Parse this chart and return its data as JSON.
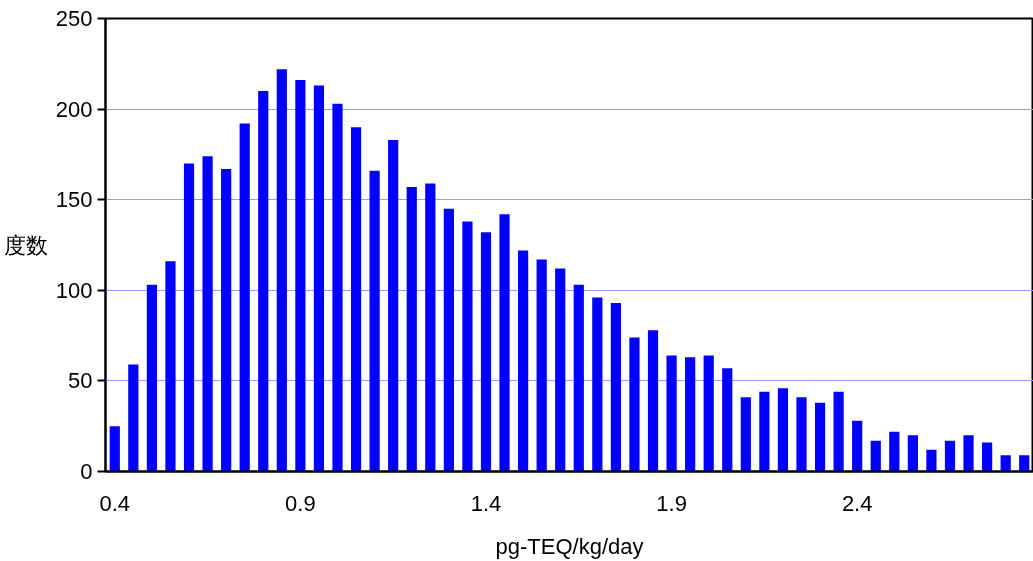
{
  "chart_data": {
    "type": "bar",
    "xlabel": "pg-TEQ/kg/day",
    "ylabel": "度数",
    "color": "#0000ff",
    "categories": [
      "0.4",
      null,
      null,
      null,
      null,
      null,
      null,
      null,
      null,
      null,
      "0.9",
      null,
      null,
      null,
      null,
      null,
      null,
      null,
      null,
      null,
      "1.4",
      null,
      null,
      null,
      null,
      null,
      null,
      null,
      null,
      null,
      "1.9",
      null,
      null,
      null,
      null,
      null,
      null,
      null,
      null,
      null,
      "2.4",
      null,
      null,
      null,
      null,
      null,
      null,
      null,
      null,
      null
    ],
    "values": [
      25,
      59,
      103,
      116,
      170,
      174,
      167,
      192,
      210,
      222,
      216,
      213,
      203,
      190,
      166,
      183,
      157,
      159,
      145,
      138,
      132,
      142,
      122,
      117,
      112,
      103,
      96,
      93,
      74,
      78,
      64,
      63,
      64,
      57,
      41,
      44,
      46,
      41,
      38,
      44,
      28,
      17,
      22,
      20,
      12,
      17,
      20,
      16,
      9,
      9
    ],
    "ylim": [
      0,
      250
    ],
    "yticks": [
      0,
      50,
      100,
      150,
      200,
      250
    ],
    "grid": "y"
  }
}
